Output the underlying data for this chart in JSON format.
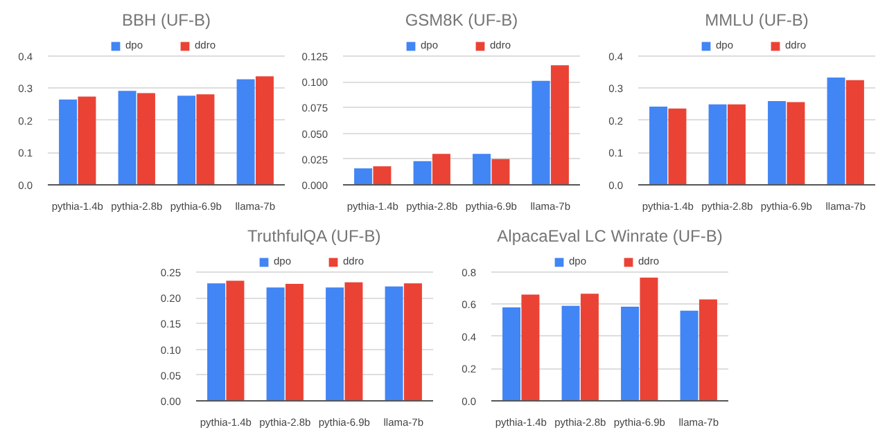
{
  "chart_data": [
    {
      "type": "bar",
      "title": "BBH (UF-B)",
      "categories": [
        "pythia-1.4b",
        "pythia-2.8b",
        "pythia-6.9b",
        "llama-7b"
      ],
      "series": [
        {
          "name": "dpo",
          "color": "#4285f4",
          "values": [
            0.265,
            0.292,
            0.277,
            0.328
          ]
        },
        {
          "name": "ddro",
          "color": "#ea4335",
          "values": [
            0.274,
            0.285,
            0.281,
            0.337
          ]
        }
      ],
      "ylim": [
        0,
        0.4
      ],
      "yticks": [
        {
          "value": 0,
          "label": "0.0"
        },
        0.1,
        0.2,
        0.3,
        0.4
      ],
      "grid": "y",
      "legend": "top"
    },
    {
      "type": "bar",
      "title": "GSM8K (UF-B)",
      "categories": [
        "pythia-1.4b",
        "pythia-2.8b",
        "pythia-6.9b",
        "llama-7b"
      ],
      "series": [
        {
          "name": "dpo",
          "color": "#4285f4",
          "values": [
            0.016,
            0.023,
            0.03,
            0.101
          ]
        },
        {
          "name": "ddro",
          "color": "#ea4335",
          "values": [
            0.018,
            0.03,
            0.025,
            0.116
          ]
        }
      ],
      "ylim": [
        0,
        0.125
      ],
      "yticks": [
        {
          "value": 0,
          "label": "0.000"
        },
        0.025,
        {
          "value": 0.05,
          "label": "0.050"
        },
        0.075,
        {
          "value": 0.1,
          "label": "0.100"
        },
        0.125
      ],
      "grid": "y",
      "legend": "top"
    },
    {
      "type": "bar",
      "title": "MMLU (UF-B)",
      "categories": [
        "pythia-1.4b",
        "pythia-2.8b",
        "pythia-6.9b",
        "llama-7b"
      ],
      "series": [
        {
          "name": "dpo",
          "color": "#4285f4",
          "values": [
            0.243,
            0.25,
            0.26,
            0.333
          ]
        },
        {
          "name": "ddro",
          "color": "#ea4335",
          "values": [
            0.237,
            0.25,
            0.257,
            0.325
          ]
        }
      ],
      "ylim": [
        0,
        0.4
      ],
      "yticks": [
        {
          "value": 0,
          "label": "0.0"
        },
        0.1,
        0.2,
        0.3,
        0.4
      ],
      "grid": "y",
      "legend": "top"
    },
    {
      "type": "bar",
      "title": "TruthfulQA (UF-B)",
      "categories": [
        "pythia-1.4b",
        "pythia-2.8b",
        "pythia-6.9b",
        "llama-7b"
      ],
      "series": [
        {
          "name": "dpo",
          "color": "#4285f4",
          "values": [
            0.228,
            0.22,
            0.22,
            0.222
          ]
        },
        {
          "name": "ddro",
          "color": "#ea4335",
          "values": [
            0.233,
            0.227,
            0.23,
            0.228
          ]
        }
      ],
      "ylim": [
        0,
        0.25
      ],
      "yticks": [
        {
          "value": 0,
          "label": "0.00"
        },
        0.05,
        {
          "value": 0.1,
          "label": "0.10"
        },
        0.15,
        {
          "value": 0.2,
          "label": "0.20"
        },
        0.25
      ],
      "grid": "y",
      "legend": "top"
    },
    {
      "type": "bar",
      "title": "AlpacaEval LC Winrate (UF-B)",
      "categories": [
        "pythia-1.4b",
        "pythia-2.8b",
        "pythia-6.9b",
        "llama-7b"
      ],
      "series": [
        {
          "name": "dpo",
          "color": "#4285f4",
          "values": [
            0.58,
            0.59,
            0.585,
            0.56
          ]
        },
        {
          "name": "ddro",
          "color": "#ea4335",
          "values": [
            0.66,
            0.665,
            0.765,
            0.63
          ]
        }
      ],
      "ylim": [
        0,
        0.8
      ],
      "yticks": [
        {
          "value": 0,
          "label": "0.0"
        },
        0.2,
        0.4,
        0.6,
        0.8
      ],
      "grid": "y",
      "legend": "top"
    }
  ]
}
